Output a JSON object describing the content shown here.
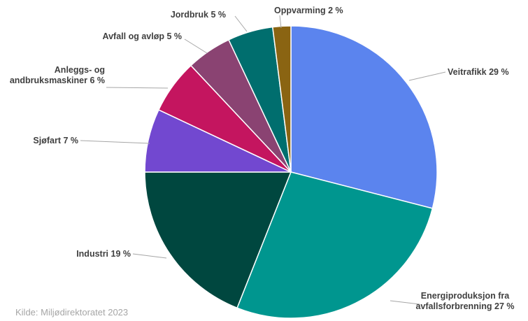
{
  "chart_data": {
    "type": "pie",
    "title": "",
    "categories": [
      "Veitrafikk",
      "Energiproduksjon fra avfallsforbrenning",
      "Industri",
      "Sjøfart",
      "Anleggs- og andbruksmaskiner",
      "Avfall og avløp",
      "Jordbruk",
      "Oppvarming"
    ],
    "values": [
      29,
      27,
      19,
      7,
      6,
      5,
      5,
      2
    ],
    "unit": "%",
    "colors": [
      "#5b84ee",
      "#00968f",
      "#00473f",
      "#7248d0",
      "#c4155f",
      "#8a4372",
      "#006e6e",
      "#8a6412"
    ],
    "labels": [
      [
        "Veitrafikk 29 %"
      ],
      [
        "Energiproduksjon fra",
        "avfallsforbrenning 27 %"
      ],
      [
        "Industri 19 %"
      ],
      [
        "Sjøfart 7 %"
      ],
      [
        "Anleggs- og",
        "andbruksmaskiner 6 %"
      ],
      [
        "Avfall og avløp 5 %"
      ],
      [
        "Jordbruk 5 %"
      ],
      [
        "Oppvarming 2 %"
      ]
    ],
    "legend": "none"
  },
  "source": "Kilde: Miljødirektoratet 2023"
}
